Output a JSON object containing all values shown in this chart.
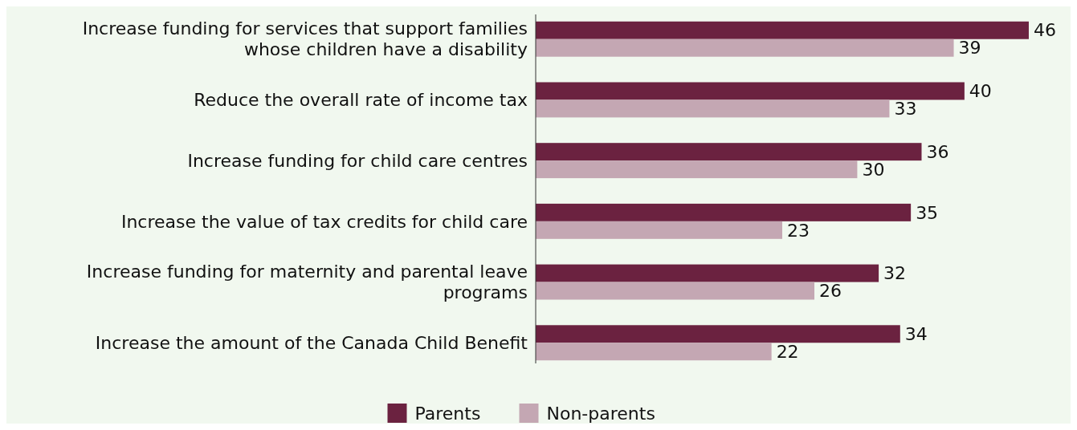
{
  "chart_data": {
    "type": "bar",
    "orientation": "horizontal",
    "categories": [
      "Increase funding for services that support families whose children have a disability",
      "Reduce the overall rate of income tax",
      "Increase funding for child care centres",
      "Increase the value of tax credits for child care",
      "Increase funding for maternity and parental leave programs",
      "Increase the amount of the Canada Child Benefit"
    ],
    "series": [
      {
        "name": "Parents",
        "color": "#6b2240",
        "values": [
          46,
          40,
          36,
          35,
          32,
          34
        ]
      },
      {
        "name": "Non-parents",
        "color": "#c4a7b3",
        "values": [
          39,
          33,
          30,
          23,
          26,
          22
        ]
      }
    ],
    "data_labels": true,
    "legend": "bottom"
  }
}
